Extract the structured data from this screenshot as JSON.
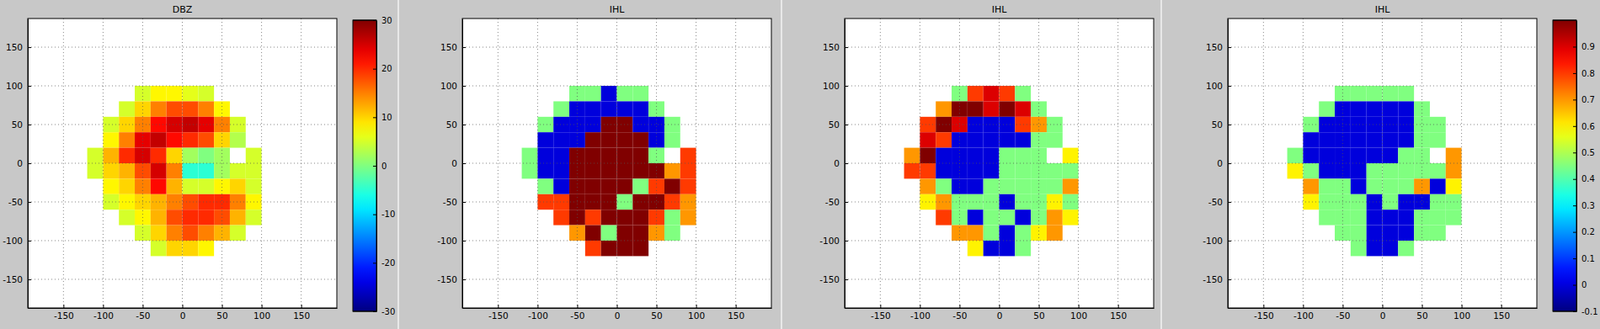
{
  "chart_data": [
    {
      "type": "heatmap",
      "title": "DBZ",
      "x": [
        -110,
        -90,
        -70,
        -50,
        -30,
        -10,
        10,
        30,
        50,
        70,
        90,
        110
      ],
      "y": [
        110,
        90,
        70,
        50,
        30,
        10,
        -10,
        -30,
        -50,
        -70,
        -90,
        -110
      ],
      "z": [
        [
          null,
          null,
          null,
          null,
          null,
          null,
          null,
          null,
          null,
          null,
          null,
          null
        ],
        [
          null,
          null,
          null,
          5,
          8,
          8,
          6,
          5,
          null,
          null,
          null,
          null
        ],
        [
          null,
          null,
          5,
          10,
          15,
          18,
          18,
          15,
          8,
          null,
          null,
          null
        ],
        [
          null,
          5,
          10,
          15,
          22,
          25,
          26,
          24,
          15,
          5,
          null,
          null
        ],
        [
          null,
          8,
          15,
          24,
          26,
          22,
          20,
          18,
          10,
          3,
          null,
          null
        ],
        [
          5,
          12,
          20,
          25,
          20,
          10,
          2,
          0,
          2,
          null,
          5,
          null
        ],
        [
          5,
          10,
          12,
          18,
          25,
          15,
          -5,
          -5,
          2,
          5,
          5,
          null
        ],
        [
          null,
          8,
          10,
          15,
          22,
          12,
          5,
          5,
          8,
          10,
          5,
          null
        ],
        [
          null,
          5,
          8,
          10,
          12,
          15,
          18,
          20,
          20,
          15,
          8,
          null
        ],
        [
          null,
          null,
          5,
          8,
          12,
          18,
          20,
          20,
          18,
          12,
          5,
          null
        ],
        [
          null,
          null,
          null,
          5,
          10,
          15,
          18,
          15,
          12,
          5,
          null,
          null
        ],
        [
          null,
          null,
          null,
          null,
          5,
          10,
          10,
          8,
          null,
          null,
          null,
          null
        ]
      ],
      "xlim": [
        -195,
        195
      ],
      "ylim": [
        -187,
        187
      ],
      "xticks": [
        -150,
        -100,
        -50,
        0,
        50,
        100,
        150
      ],
      "yticks": [
        -150,
        -100,
        -50,
        0,
        50,
        100,
        150
      ],
      "grid": true,
      "zlim": [
        -30,
        30
      ],
      "zticks": [
        -30,
        -20,
        -10,
        0,
        10,
        20,
        30
      ]
    },
    {
      "type": "heatmap",
      "title": "IHL",
      "x": [
        -110,
        -90,
        -70,
        -50,
        -30,
        -10,
        10,
        30,
        50,
        70,
        90,
        110
      ],
      "y": [
        110,
        90,
        70,
        50,
        30,
        10,
        -10,
        -30,
        -50,
        -70,
        -90,
        -110
      ],
      "z": [
        [
          null,
          null,
          null,
          null,
          null,
          null,
          null,
          null,
          null,
          null,
          null,
          null
        ],
        [
          null,
          null,
          null,
          0.45,
          0.45,
          0,
          0.45,
          0.45,
          null,
          null,
          null,
          null
        ],
        [
          null,
          null,
          0.45,
          0,
          0,
          0,
          0,
          0,
          0.45,
          null,
          null,
          null
        ],
        [
          null,
          0.45,
          0,
          0,
          0,
          1,
          1,
          0,
          0,
          0.45,
          null,
          null
        ],
        [
          null,
          0,
          0,
          0,
          1,
          1,
          1,
          1,
          0,
          0.45,
          null,
          null
        ],
        [
          0.45,
          0,
          0,
          1,
          1,
          1,
          1,
          1,
          0.45,
          null,
          0.8,
          null
        ],
        [
          0.45,
          0,
          0,
          1,
          1,
          1,
          1,
          1,
          1,
          0.7,
          0.8,
          null
        ],
        [
          null,
          0.45,
          0,
          1,
          1,
          1,
          1,
          0.45,
          0.8,
          1,
          0.8,
          null
        ],
        [
          null,
          0.8,
          0.8,
          1,
          1,
          1,
          0.45,
          1,
          1,
          0.8,
          0.7,
          null
        ],
        [
          null,
          null,
          0.8,
          1,
          0.8,
          1,
          1,
          1,
          0.8,
          0.45,
          0.7,
          null
        ],
        [
          null,
          null,
          null,
          0.7,
          1,
          0.45,
          1,
          1,
          0.7,
          0.45,
          null,
          null
        ],
        [
          null,
          null,
          null,
          null,
          0.8,
          1,
          1,
          1,
          null,
          null,
          null,
          null
        ]
      ],
      "xlim": [
        -195,
        195
      ],
      "ylim": [
        -187,
        187
      ],
      "xticks": [
        -150,
        -100,
        -50,
        0,
        50,
        100,
        150
      ],
      "yticks": [
        -150,
        -100,
        -50,
        0,
        50,
        100,
        150
      ],
      "grid": true,
      "zlim": [
        -0.1,
        1
      ]
    },
    {
      "type": "heatmap",
      "title": "IHL",
      "x": [
        -110,
        -90,
        -70,
        -50,
        -30,
        -10,
        10,
        30,
        50,
        70,
        90,
        110
      ],
      "y": [
        110,
        90,
        70,
        50,
        30,
        10,
        -10,
        -30,
        -50,
        -70,
        -90,
        -110
      ],
      "z": [
        [
          null,
          null,
          null,
          null,
          null,
          null,
          null,
          null,
          null,
          null,
          null,
          null
        ],
        [
          null,
          null,
          null,
          0.45,
          0.8,
          0.9,
          0.8,
          0.45,
          null,
          null,
          null,
          null
        ],
        [
          null,
          null,
          0.7,
          1,
          1,
          0.9,
          1,
          0.9,
          0.45,
          null,
          null,
          null
        ],
        [
          null,
          0.8,
          1,
          0.9,
          0,
          0,
          0,
          0.8,
          0.7,
          0.45,
          null,
          null
        ],
        [
          null,
          0.9,
          0.8,
          0,
          0,
          0,
          0,
          0,
          0.45,
          0.45,
          null,
          null
        ],
        [
          0.7,
          1,
          0,
          0,
          0,
          0,
          0.45,
          0.45,
          0.45,
          null,
          0.6,
          null
        ],
        [
          0.8,
          0.8,
          0,
          0,
          0,
          0,
          0.45,
          0.45,
          0.45,
          0.45,
          0.45,
          null
        ],
        [
          null,
          0.7,
          0.45,
          0,
          0,
          0.45,
          0.45,
          0.45,
          0.45,
          0.45,
          0.7,
          null
        ],
        [
          null,
          0.6,
          0.7,
          0.45,
          0.45,
          0.45,
          0,
          0.45,
          0.45,
          0.6,
          0.45,
          null
        ],
        [
          null,
          null,
          0.8,
          0.45,
          0,
          0.45,
          0.45,
          0,
          0.45,
          0.7,
          0.6,
          null
        ],
        [
          null,
          null,
          null,
          0.7,
          0.7,
          0.45,
          0,
          0.45,
          0.6,
          0.7,
          null,
          null
        ],
        [
          null,
          null,
          null,
          null,
          0.6,
          0,
          0,
          0.45,
          null,
          null,
          null,
          null
        ]
      ],
      "xlim": [
        -195,
        195
      ],
      "ylim": [
        -187,
        187
      ],
      "xticks": [
        -150,
        -100,
        -50,
        0,
        50,
        100,
        150
      ],
      "yticks": [
        -150,
        -100,
        -50,
        0,
        50,
        100,
        150
      ],
      "grid": true,
      "zlim": [
        -0.1,
        1
      ]
    },
    {
      "type": "heatmap",
      "title": "IHL",
      "x": [
        -110,
        -90,
        -70,
        -50,
        -30,
        -10,
        10,
        30,
        50,
        70,
        90,
        110
      ],
      "y": [
        110,
        90,
        70,
        50,
        30,
        10,
        -10,
        -30,
        -50,
        -70,
        -90,
        -110
      ],
      "z": [
        [
          null,
          null,
          null,
          null,
          null,
          null,
          null,
          null,
          null,
          null,
          null,
          null
        ],
        [
          null,
          null,
          null,
          0.45,
          0.45,
          0.45,
          0.45,
          0.45,
          null,
          null,
          null,
          null
        ],
        [
          null,
          null,
          0.45,
          0,
          0,
          0,
          0,
          0,
          0.45,
          null,
          null,
          null
        ],
        [
          null,
          0.45,
          0,
          0,
          0,
          0,
          0,
          0,
          0.45,
          0.45,
          null,
          null
        ],
        [
          null,
          0,
          0,
          0,
          0,
          0,
          0,
          0,
          0.45,
          0.45,
          null,
          null
        ],
        [
          0.45,
          0,
          0,
          0,
          0,
          0,
          0,
          0.45,
          0.45,
          null,
          0.7,
          null
        ],
        [
          0.6,
          0.45,
          0,
          0,
          0,
          0.45,
          0.45,
          0.45,
          0.45,
          0.45,
          0.7,
          null
        ],
        [
          null,
          0.7,
          0.45,
          0.45,
          0,
          0.45,
          0.45,
          0.45,
          0.7,
          0,
          0.6,
          null
        ],
        [
          null,
          0.6,
          0.45,
          0.45,
          0.45,
          0,
          0.45,
          0,
          0,
          0.45,
          0.45,
          null
        ],
        [
          null,
          null,
          0.45,
          0.45,
          0.45,
          0,
          0,
          0,
          0.45,
          0.45,
          0.45,
          null
        ],
        [
          null,
          null,
          null,
          0.45,
          0.45,
          0,
          0,
          0,
          0.45,
          0.45,
          null,
          null
        ],
        [
          null,
          null,
          null,
          null,
          0.45,
          0,
          0,
          0.45,
          null,
          null,
          null,
          null
        ]
      ],
      "xlim": [
        -195,
        195
      ],
      "ylim": [
        -187,
        187
      ],
      "xticks": [
        -150,
        -100,
        -50,
        0,
        50,
        100,
        150
      ],
      "yticks": [
        -150,
        -100,
        -50,
        0,
        50,
        100,
        150
      ],
      "grid": true,
      "zlim": [
        -0.1,
        1
      ],
      "zticks": [
        -0.1,
        0,
        0.1,
        0.2,
        0.3,
        0.4,
        0.5,
        0.6,
        0.7,
        0.8,
        0.9
      ]
    }
  ]
}
